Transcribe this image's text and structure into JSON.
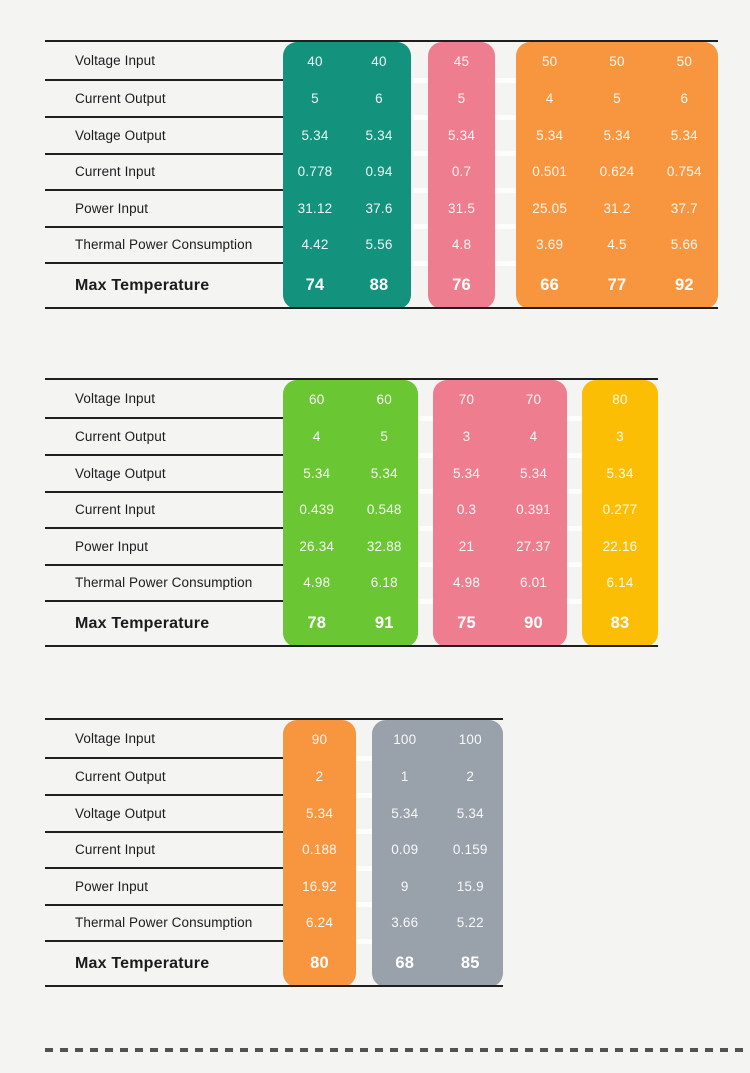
{
  "chart_data": {
    "type": "table",
    "row_labels": [
      "Voltage Input",
      "Current Output",
      "Voltage Output",
      "Current Input",
      "Power Input",
      "Thermal Power Consumption",
      "Max Temperature"
    ],
    "tables": [
      {
        "groups": [
          {
            "color": "#13927E",
            "columns": [
              [
                "40",
                "5",
                "5.34",
                "0.778",
                "31.12",
                "4.42",
                "74"
              ],
              [
                "40",
                "6",
                "5.34",
                "0.94",
                "37.6",
                "5.56",
                "88"
              ]
            ]
          },
          {
            "color": "#EE7E8F",
            "columns": [
              [
                "45",
                "5",
                "5.34",
                "0.7",
                "31.5",
                "4.8",
                "76"
              ]
            ]
          },
          {
            "color": "#F8963F",
            "columns": [
              [
                "50",
                "4",
                "5.34",
                "0.501",
                "25.05",
                "3.69",
                "66"
              ],
              [
                "50",
                "5",
                "5.34",
                "0.624",
                "31.2",
                "4.5",
                "77"
              ],
              [
                "50",
                "6",
                "5.34",
                "0.754",
                "37.7",
                "5.66",
                "92"
              ]
            ]
          }
        ]
      },
      {
        "groups": [
          {
            "color": "#6BC634",
            "columns": [
              [
                "60",
                "4",
                "5.34",
                "0.439",
                "26.34",
                "4.98",
                "78"
              ],
              [
                "60",
                "5",
                "5.34",
                "0.548",
                "32.88",
                "6.18",
                "91"
              ]
            ]
          },
          {
            "color": "#EE7E8F",
            "columns": [
              [
                "70",
                "3",
                "5.34",
                "0.3",
                "21",
                "4.98",
                "75"
              ],
              [
                "70",
                "4",
                "5.34",
                "0.391",
                "27.37",
                "6.01",
                "90"
              ]
            ]
          },
          {
            "color": "#FCBD05",
            "columns": [
              [
                "80",
                "3",
                "5.34",
                "0.277",
                "22.16",
                "6.14",
                "83"
              ]
            ]
          }
        ]
      },
      {
        "groups": [
          {
            "color": "#F8963F",
            "columns": [
              [
                "90",
                "2",
                "5.34",
                "0.188",
                "16.92",
                "6.24",
                "80"
              ]
            ]
          },
          {
            "color": "#99A1AB",
            "columns": [
              [
                "100",
                "1",
                "5.34",
                "0.09",
                "9",
                "3.66",
                "68"
              ],
              [
                "100",
                "2",
                "5.34",
                "0.159",
                "15.9",
                "5.22",
                "85"
              ]
            ]
          }
        ]
      }
    ]
  },
  "colors": {
    "background": "#F4F4F2",
    "rule": "#1F1F1F",
    "label_text": "#1B1B1B",
    "value_text": "#FFFFFF",
    "dash": "#525252",
    "teal": "#13927E",
    "pink": "#EE7E8F",
    "orange": "#F8963F",
    "green": "#6BC634",
    "yellow": "#FCBD05",
    "gray": "#99A1AB"
  }
}
